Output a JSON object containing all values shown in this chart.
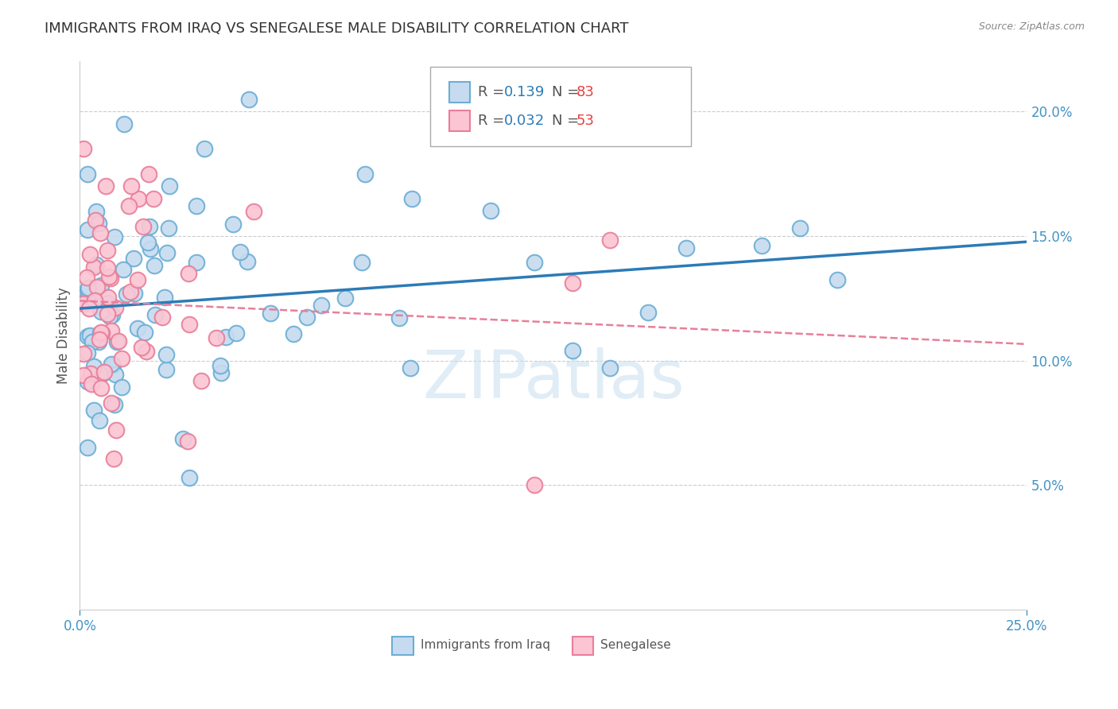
{
  "title": "IMMIGRANTS FROM IRAQ VS SENEGALESE MALE DISABILITY CORRELATION CHART",
  "source": "Source: ZipAtlas.com",
  "ylabel": "Male Disability",
  "xlim": [
    0.0,
    0.25
  ],
  "ylim": [
    0.0,
    0.22
  ],
  "xtick_vals": [
    0.0,
    0.25
  ],
  "xtick_labels": [
    "0.0%",
    "25.0%"
  ],
  "ytick_vals": [
    0.05,
    0.1,
    0.15,
    0.2
  ],
  "ytick_labels": [
    "5.0%",
    "10.0%",
    "15.0%",
    "20.0%"
  ],
  "grid_ytick_vals": [
    0.05,
    0.1,
    0.15,
    0.2
  ],
  "legend_R1": "0.139",
  "legend_N1": "83",
  "legend_R2": "0.032",
  "legend_N2": "53",
  "legend_label1": "Immigrants from Iraq",
  "legend_label2": "Senegalese",
  "iraq_color_edge": "#6baed6",
  "iraq_color_fill": "#c6dbef",
  "senegal_color_edge": "#e87f9a",
  "senegal_color_fill": "#fcc5d3",
  "trendline_iraq_color": "#2c7bb6",
  "trendline_senegal_color": "#e87f9a",
  "watermark": "ZIPatlas",
  "watermark_color": "#c8dff0",
  "background_color": "#ffffff",
  "grid_color": "#cccccc",
  "axis_label_color": "#4393c3",
  "title_color": "#333333",
  "source_color": "#888888",
  "ylabel_color": "#555555"
}
